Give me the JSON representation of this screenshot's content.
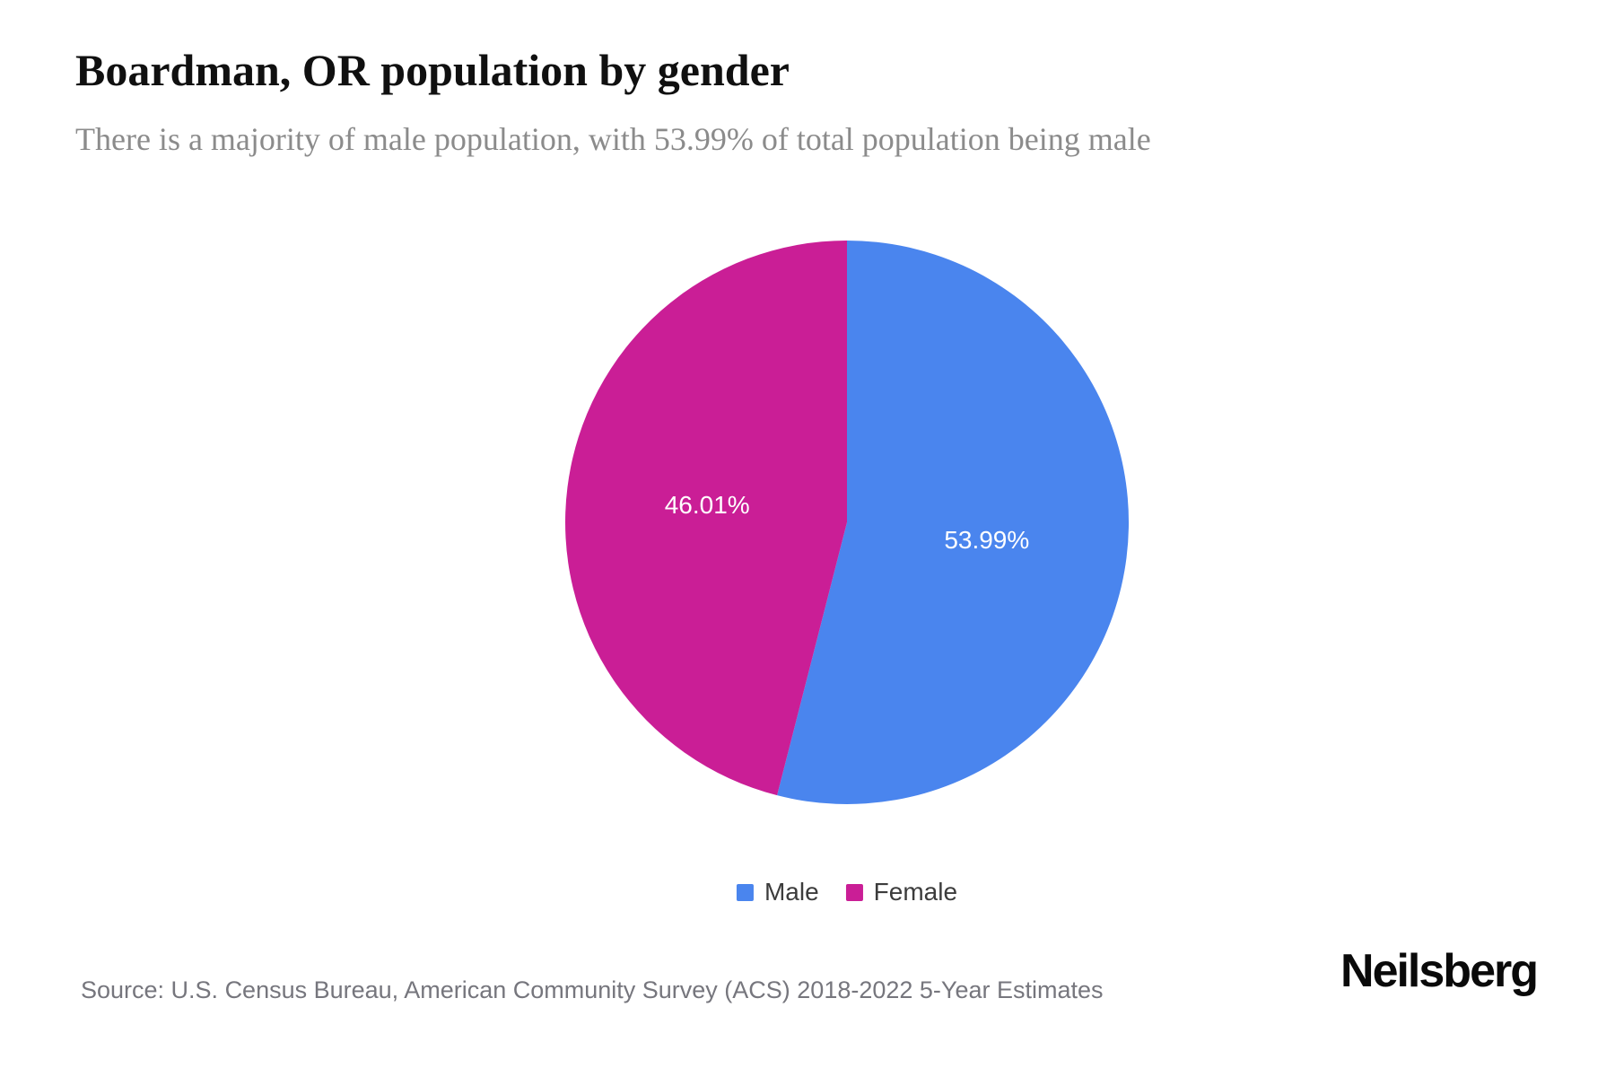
{
  "page": {
    "title": "Boardman, OR population by gender",
    "subtitle": "There is a majority of male population, with 53.99% of total population being male",
    "source": "Source: U.S. Census Bureau, American Community Survey (ACS) 2018-2022 5-Year Estimates",
    "brand": "Neilsberg"
  },
  "colors": {
    "male": "#4A85EE",
    "female": "#CA1E96",
    "slice_label": "#ffffff",
    "subtitle_text": "#8b8b8b",
    "source_text": "#76767d"
  },
  "chart_data": {
    "type": "pie",
    "title": "Boardman, OR population by gender",
    "categories": [
      "Male",
      "Female"
    ],
    "values": [
      53.99,
      46.01
    ],
    "slice_labels": [
      "53.99%",
      "46.01%"
    ],
    "colors": [
      "#4A85EE",
      "#CA1E96"
    ],
    "slice_label_color": "#ffffff",
    "start_angle_deg": 0,
    "direction": "clockwise",
    "legend_position": "bottom"
  }
}
